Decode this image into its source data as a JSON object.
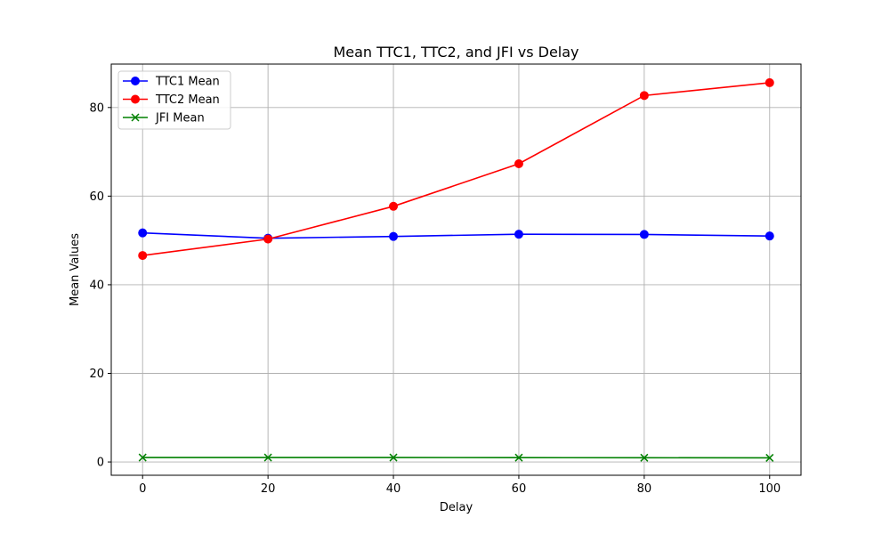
{
  "chart_data": {
    "type": "line",
    "title": "Mean TTC1, TTC2, and JFI vs Delay",
    "xlabel": "Delay",
    "ylabel": "Mean Values",
    "x": [
      0,
      20,
      40,
      60,
      80,
      100
    ],
    "xlim": [
      -5,
      105
    ],
    "ylim": [
      -3,
      89.8
    ],
    "xticks": [
      0,
      20,
      40,
      60,
      80,
      100
    ],
    "yticks": [
      0,
      20,
      40,
      60,
      80
    ],
    "grid": true,
    "legend_position": "top-left",
    "series": [
      {
        "name": "TTC1 Mean",
        "color": "#0000ff",
        "marker": "circle",
        "values": [
          51.7,
          50.5,
          50.9,
          51.4,
          51.35,
          51.0
        ]
      },
      {
        "name": "TTC2 Mean",
        "color": "#ff0000",
        "marker": "circle",
        "values": [
          46.6,
          50.3,
          57.7,
          67.3,
          82.7,
          85.6
        ]
      },
      {
        "name": "JFI Mean",
        "color": "#008000",
        "marker": "x",
        "values": [
          1.0,
          1.0,
          1.0,
          0.98,
          0.95,
          0.93
        ]
      }
    ]
  }
}
